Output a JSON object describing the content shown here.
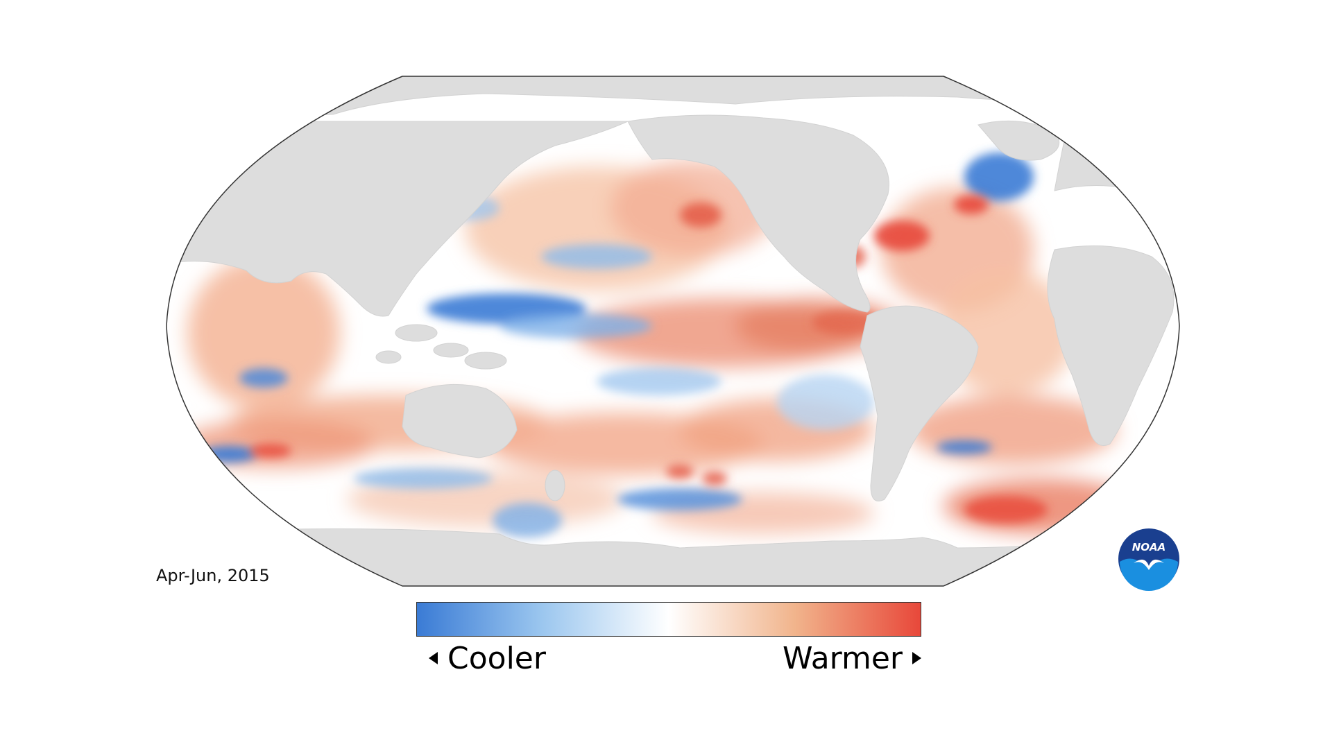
{
  "map": {
    "period": "Apr-Jun, 2015",
    "projection": "robinson",
    "land_color": "#dddddd",
    "ocean_neutral_color": "#ffffff",
    "cool_color": "#3a7bd5",
    "warm_color": "#e8483a"
  },
  "legend": {
    "cooler_label": "Cooler",
    "warmer_label": "Warmer",
    "gradient_stops": [
      "#3a7bd5",
      "#9cc7ef",
      "#ffffff",
      "#f1b48c",
      "#e8483a"
    ]
  },
  "logo": {
    "text": "NOAA",
    "outer_color": "#1a3f8f",
    "inner_color": "#1a8fe0"
  }
}
